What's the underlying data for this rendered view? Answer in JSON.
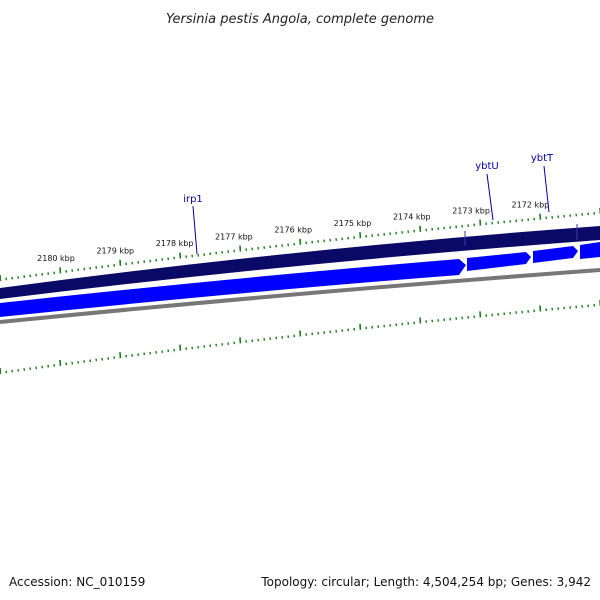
{
  "title": "Yersinia pestis Angola, complete genome",
  "footer": {
    "accession": "Accession: NC_010159",
    "summary": "Topology: circular; Length: 4,504,254 bp; Genes: 3,942"
  },
  "colors": {
    "gene_dark": "#0a0a66",
    "gene_blue": "#0000ff",
    "backbone": "#777777",
    "tick": "#1a7a1a",
    "label": "#0000aa"
  },
  "scale_labels": [
    "2180 kbp",
    "2179 kbp",
    "2178 kbp",
    "2177 kbp",
    "2176 kbp",
    "2175 kbp",
    "2174 kbp",
    "2173 kbp",
    "2172 kbp"
  ],
  "genes": [
    {
      "name": "irp1"
    },
    {
      "name": "ybtU"
    },
    {
      "name": "ybtT"
    }
  ]
}
